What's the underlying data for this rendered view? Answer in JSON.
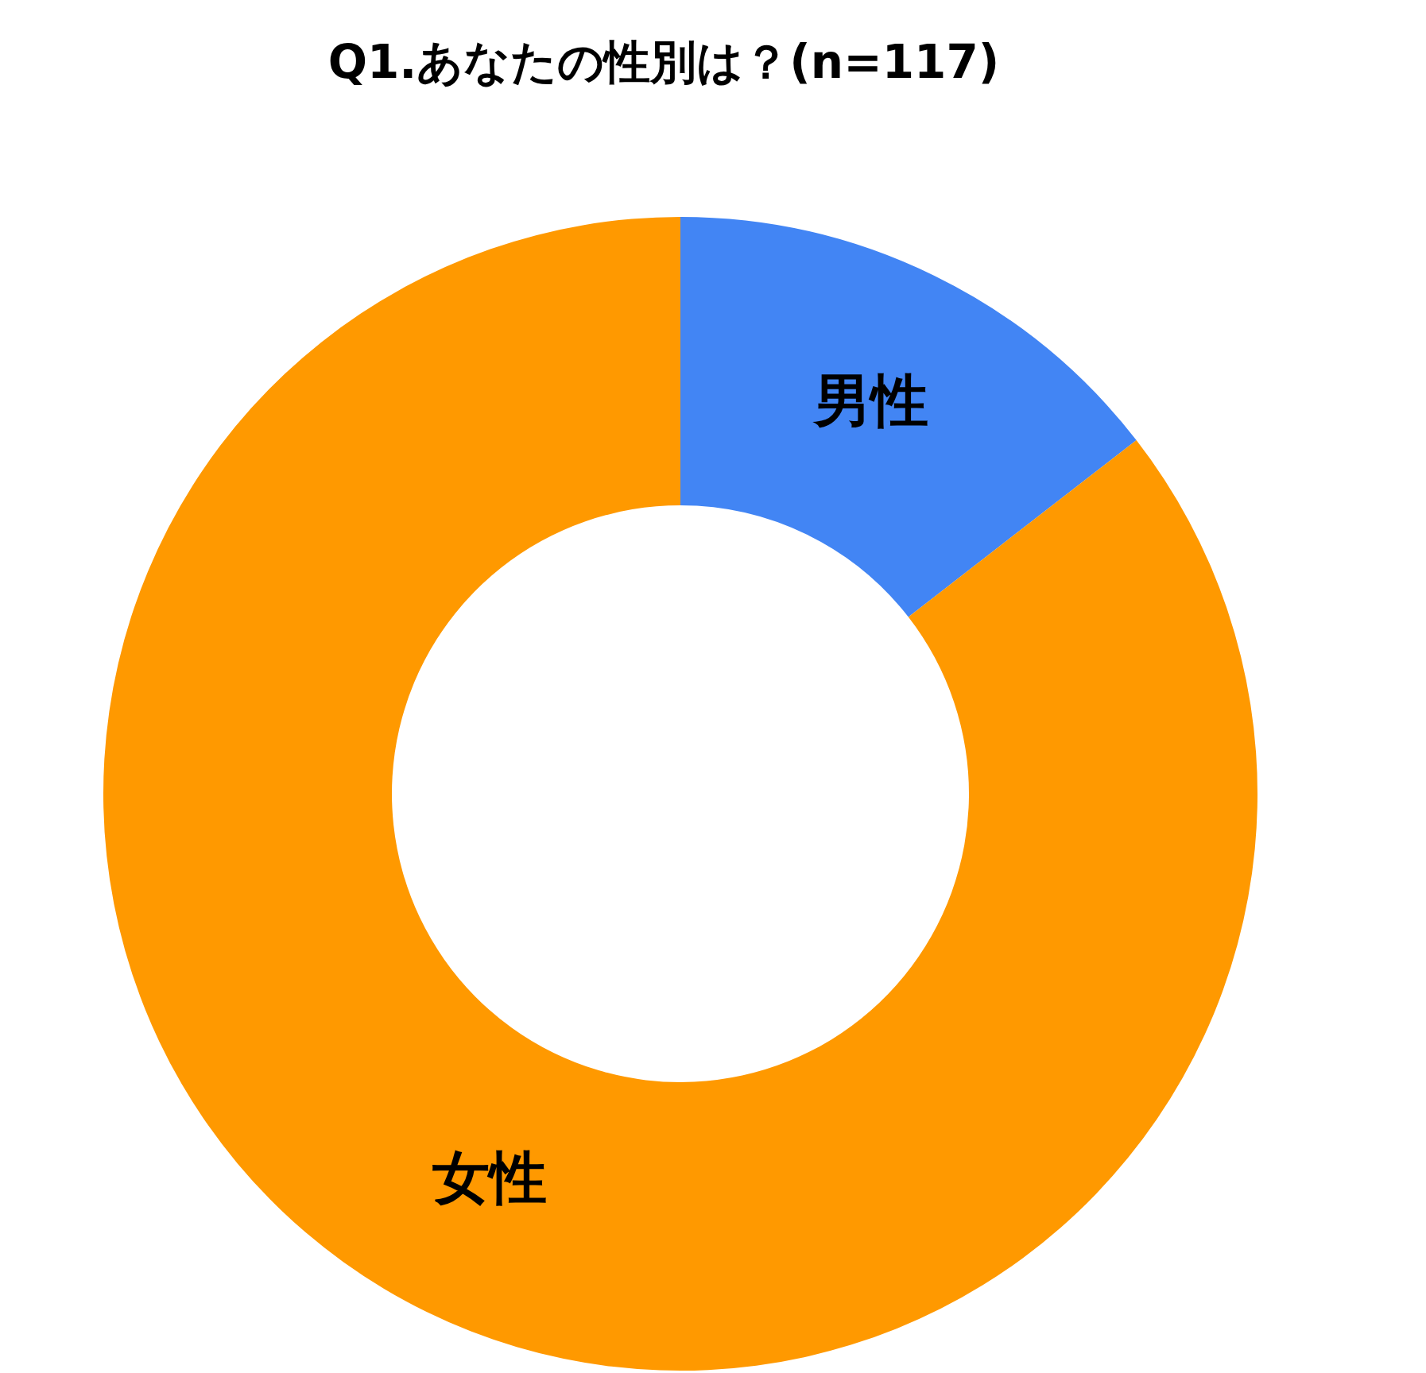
{
  "chart_data": {
    "type": "donut",
    "title": "Q1.あなたの性別は？(n=117)",
    "categories": [
      "男性",
      "女性"
    ],
    "values": [
      14.5,
      85.5
    ],
    "colors": [
      "#4285f4",
      "#ff9900"
    ],
    "legend": false
  }
}
